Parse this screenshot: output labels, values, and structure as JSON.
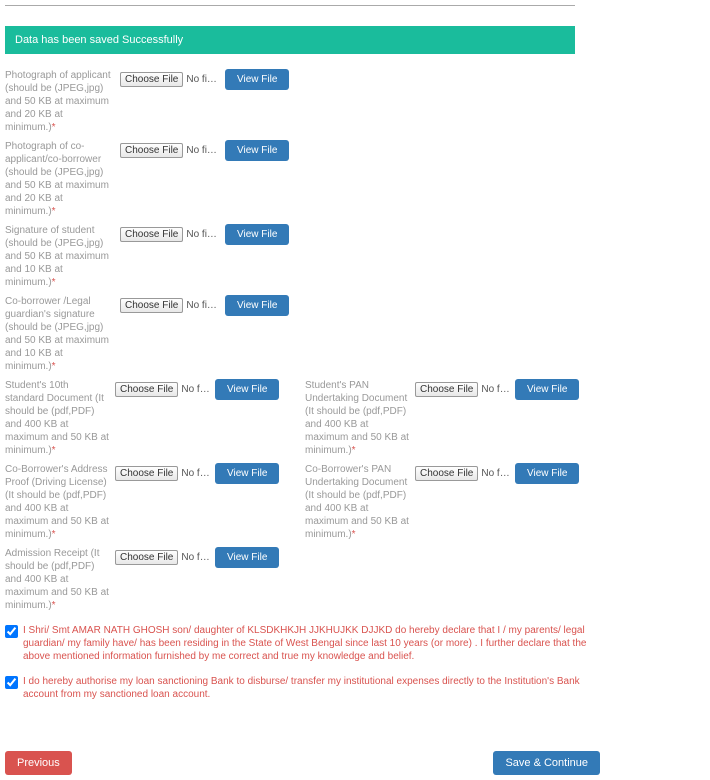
{
  "success_message": "Data has been saved Successfully",
  "file_button_label": "Choose File",
  "no_file_text": "No fi…sen",
  "view_file_label": "View File",
  "uploads_single": [
    {
      "label": "Photograph of applicant (should be (JPEG,jpg) and 50 KB at maximum and 20 KB at minimum.)"
    },
    {
      "label": "Photograph of co-applicant/co-borrower (should be (JPEG,jpg) and 50 KB at maximum and 20 KB at minimum.)"
    },
    {
      "label": "Signature of student (should be (JPEG,jpg) and 50 KB at maximum and 10 KB at minimum.)"
    },
    {
      "label": "Co-borrower /Legal guardian's signature (should be (JPEG,jpg) and 50 KB at maximum and 10 KB at minimum.)"
    }
  ],
  "uploads_double": [
    {
      "left": {
        "label": "Student's 10th standard Document (It should be (pdf,PDF) and 400 KB at maximum and 50 KB at minimum.)"
      },
      "right": {
        "label": "Student's PAN Undertaking Document (It should be (pdf,PDF) and 400 KB at maximum and 50 KB at minimum.)"
      }
    },
    {
      "left": {
        "label": "Co-Borrower's Address Proof (Driving License) (It should be (pdf,PDF) and 400 KB at maximum and 50 KB at minimum.)"
      },
      "right": {
        "label": "Co-Borrower's PAN Undertaking Document (It should be (pdf,PDF) and 400 KB at maximum and 50 KB at minimum.)"
      }
    },
    {
      "left": {
        "label": "Admission Receipt (It should be (pdf,PDF) and 400 KB at maximum and 50 KB at minimum.)"
      },
      "right": null
    }
  ],
  "declarations": [
    "I Shri/ Smt AMAR NATH GHOSH son/ daughter of KLSDKHKJH JJKHUJKK DJJKD do hereby declare that I / my parents/ legal guardian/ my family have/ has been residing in the State of West Bengal since last 10 years (or more) . I further declare that the above mentioned information furnished by me correct and true my knowledge and belief.",
    "I do hereby authorise my loan sanctioning Bank to disburse/ transfer my institutional expenses directly to the Institution's Bank account from my sanctioned loan account."
  ],
  "buttons": {
    "previous": "Previous",
    "save_continue": "Save & Continue"
  },
  "colors": {
    "success_bg": "#1abc9c",
    "primary": "#337ab7",
    "danger": "#d9534f",
    "muted": "#999999"
  }
}
